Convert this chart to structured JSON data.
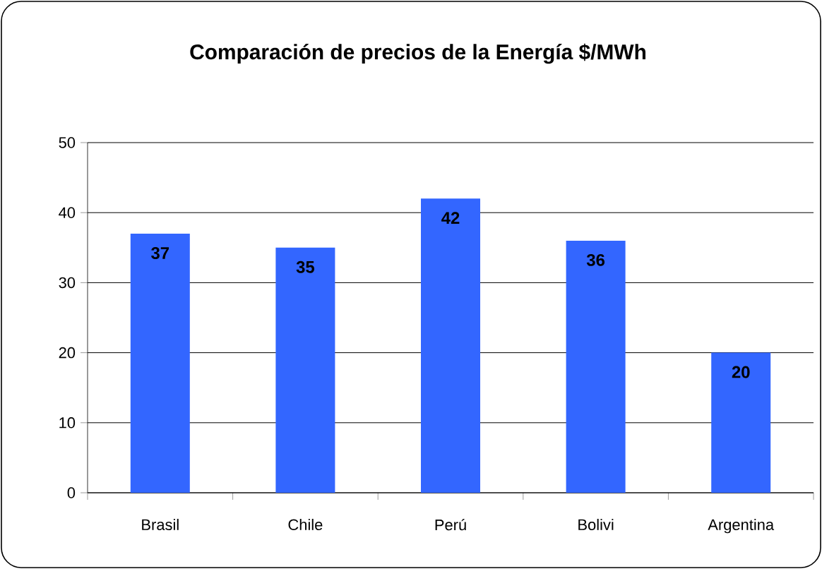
{
  "chart_data": {
    "type": "bar",
    "title": "Comparación de precios de la Energía $/MWh",
    "categories": [
      "Brasil",
      "Chile",
      "Perú",
      "Bolivi",
      "Argentina"
    ],
    "values": [
      37,
      35,
      42,
      36,
      20
    ],
    "color": "#3366ff",
    "ylim": [
      0,
      50
    ],
    "yticks": [
      0,
      10,
      20,
      30,
      40,
      50
    ],
    "grid": "y",
    "data_labels": true
  }
}
